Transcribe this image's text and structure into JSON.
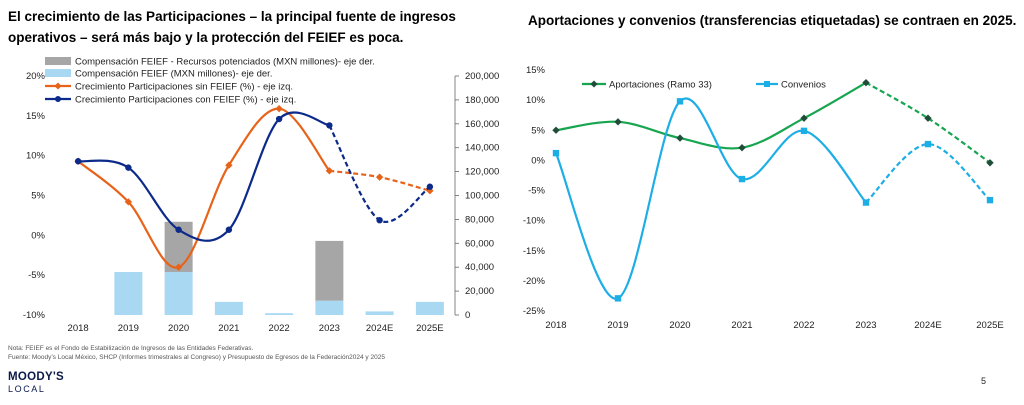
{
  "left_title": "El crecimiento de las Participaciones – la principal fuente de ingresos operativos – será más bajo y la protección del FEIEF es poca.",
  "right_title": "Aportaciones y convenios (transferencias etiquetadas) se contraen en 2025.",
  "note": "Nota: FEIEF es el Fondo de Estabilización de Ingresos de las Entidades Federativas.",
  "source": "Fuente: Moody’s Local México, SHCP (Informes trimestrales al Congreso) y Presupuesto de Egresos de la Federación2024 y 2025",
  "logo_line1": "MOODY'S",
  "logo_line2": "LOCAL",
  "page_number": "5",
  "chart_data": [
    {
      "type": "bar+line",
      "categories": [
        "2018",
        "2019",
        "2020",
        "2021",
        "2022",
        "2023",
        "2024E",
        "2025E"
      ],
      "y_left_ticks": [
        "20%",
        "15%",
        "10%",
        "5%",
        "0%",
        "-5%",
        "-10%"
      ],
      "y_left_range": [
        -10,
        20
      ],
      "y_right_ticks": [
        "200,000",
        "180,000",
        "160,000",
        "140,000",
        "120,000",
        "100,000",
        "80,000",
        "60,000",
        "40,000",
        "20,000",
        "0"
      ],
      "y_right_range": [
        0,
        200000
      ],
      "grid": false,
      "legend_position": "top-left",
      "stacked_bars": [
        {
          "name": "Compensación FEIEF (MXN millones)- eje der.",
          "color": "#a9d8f3",
          "values": [
            0,
            36000,
            36000,
            11000,
            1500,
            12000,
            3000,
            11000
          ]
        },
        {
          "name": "Compensación FEIEF - Recursos potenciados (MXN millones)- eje der.",
          "color": "#a6a6a6",
          "values": [
            0,
            0,
            42000,
            0,
            0,
            50000,
            0,
            0
          ]
        }
      ],
      "series": [
        {
          "name": "Crecimiento Participaciones sin FEIEF (%) - eje izq.",
          "color": "#e8631a",
          "values": [
            9.3,
            4.2,
            -4.0,
            8.8,
            15.9,
            8.1,
            7.3,
            5.6
          ],
          "dashed_from": "2023"
        },
        {
          "name": "Crecimiento Participaciones con FEIEF (%) - eje izq.",
          "color": "#0c2a8a",
          "values": [
            9.3,
            8.5,
            0.7,
            0.7,
            14.6,
            13.8,
            1.9,
            6.1
          ],
          "dashed_from": "2023"
        }
      ]
    },
    {
      "type": "line",
      "categories": [
        "2018",
        "2019",
        "2020",
        "2021",
        "2022",
        "2023",
        "2024E",
        "2025E"
      ],
      "y_ticks": [
        "15%",
        "10%",
        "5%",
        "0%",
        "-5%",
        "-10%",
        "-15%",
        "-20%",
        "-25%"
      ],
      "y_range": [
        -25,
        15
      ],
      "grid": false,
      "legend_position": "top",
      "series": [
        {
          "name": "Aportaciones (Ramo 33)",
          "color": "#17a550",
          "values": [
            5.0,
            6.4,
            3.7,
            2.1,
            7.0,
            12.9,
            7.0,
            -0.4
          ],
          "dashed_from": "2023"
        },
        {
          "name": "Convenios",
          "color": "#1eaee6",
          "values": [
            1.2,
            -22.9,
            9.8,
            -3.1,
            4.9,
            -7.0,
            2.7,
            -6.6
          ],
          "dashed_from": "2023"
        }
      ]
    }
  ]
}
